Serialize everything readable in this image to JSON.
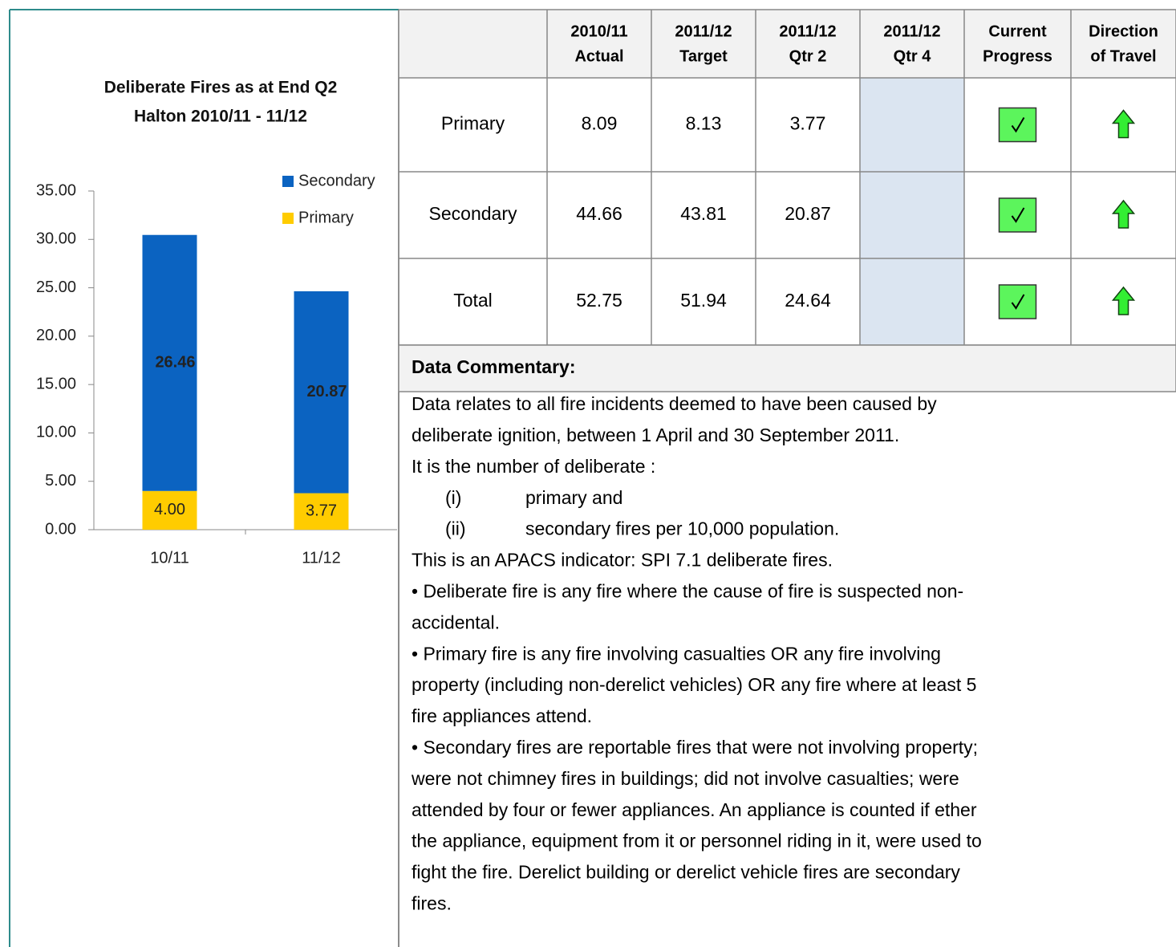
{
  "chart_data": {
    "type": "stacked_bar",
    "title": [
      "Deliberate Fires  as at End Q2",
      "Halton 2010/11 - 11/12"
    ],
    "categories": [
      "10/11",
      "11/12"
    ],
    "series": [
      {
        "name": "Primary",
        "color": "#ffcc00",
        "values": [
          4.0,
          3.77
        ],
        "value_labels": [
          "4.00",
          "3.77"
        ]
      },
      {
        "name": "Secondary",
        "color": "#0b63c1",
        "values": [
          26.46,
          20.87
        ]
      }
    ],
    "ylim": [
      0,
      35
    ],
    "yticks": [
      {
        "value": 0,
        "label": "0.00"
      },
      {
        "value": 5,
        "label": "5.00"
      },
      {
        "value": 10,
        "label": "10.00"
      },
      {
        "value": 15,
        "label": "15.00"
      },
      {
        "value": 20,
        "label": "20.00"
      },
      {
        "value": 25,
        "label": "25.00"
      },
      {
        "value": 30,
        "label": "30.00"
      },
      {
        "value": 35,
        "label": "35.00"
      }
    ],
    "legend": "top-right"
  },
  "table": {
    "columns": [
      [
        "2010/11",
        "Actual"
      ],
      [
        "2011/12",
        "Target"
      ],
      [
        "2011/12",
        "Qtr 2"
      ],
      [
        "2011/12",
        "Qtr 4"
      ],
      [
        "Current",
        "Progress"
      ],
      [
        "Direction",
        "of Travel"
      ]
    ],
    "rows": [
      {
        "label": "Primary",
        "values": [
          8.09,
          8.13,
          3.77
        ]
      },
      {
        "label": "Secondary",
        "values": [
          44.66,
          43.81,
          20.87
        ]
      },
      {
        "label": "Total",
        "values": [
          52.75,
          51.94,
          24.64
        ]
      }
    ]
  },
  "commentary": {
    "title": "Data Commentary:",
    "lines": [
      "Data relates to all fire incidents deemed to have been caused by",
      "deliberate ignition, between 1 April and 30 September 2011.",
      "It is the number of deliberate :",
      {
        "marker": "(i)",
        "text": "primary and"
      },
      {
        "marker": "(ii)",
        "text": "secondary fires per 10,000 population."
      },
      "This is an APACS indicator: SPI 7.1 deliberate fires.",
      "• Deliberate fire is any fire where the cause of fire is suspected non-",
      "accidental.",
      "• Primary fire is any fire involving casualties OR any fire involving",
      "property (including non-derelict vehicles) OR any fire where at least 5",
      "fire appliances attend.",
      "• Secondary fires are reportable fires that were not involving property;",
      "were not chimney fires in buildings; did not involve casualties; were",
      "attended by four or fewer appliances. An appliance is counted if ether",
      "the appliance, equipment from it or personnel riding in it, were used to",
      "fight the fire. Derelict building or derelict vehicle fires are secondary",
      "fires."
    ]
  }
}
